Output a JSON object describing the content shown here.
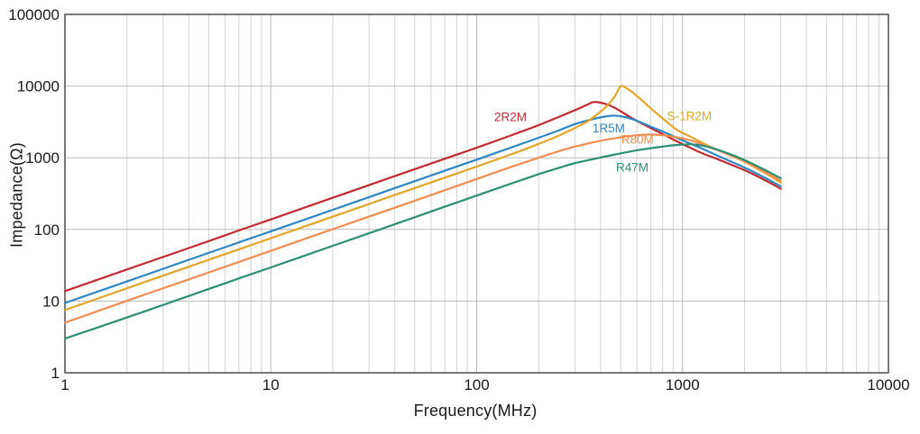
{
  "chart_data": {
    "type": "line",
    "title": "",
    "xlabel": "Frequency(MHz)",
    "ylabel": "Impedance(Ω)",
    "x_scale": "log",
    "y_scale": "log",
    "xlim": [
      1,
      10000
    ],
    "ylim": [
      1,
      100000
    ],
    "x_ticks": [
      1,
      10,
      100,
      1000,
      10000
    ],
    "y_ticks": [
      1,
      10,
      100,
      1000,
      10000,
      100000
    ],
    "grid": {
      "vertical": "log major + minor (2-9 each decade)",
      "horizontal": "major decades only",
      "minor_color": "#d2d2d2",
      "major_color": "#bcbcbc",
      "border_color": "#4d4d4d"
    },
    "legend_position": "inline-curve-labels",
    "text_color": "#1a1a1a",
    "series": [
      {
        "name": "2R2M",
        "color": "#bf2b31",
        "label_anchor": [
          146,
          3700
        ],
        "points": [
          [
            1,
            13.8
          ],
          [
            2,
            27.6
          ],
          [
            4,
            55
          ],
          [
            7,
            97
          ],
          [
            10,
            138
          ],
          [
            20,
            277
          ],
          [
            40,
            555
          ],
          [
            70,
            970
          ],
          [
            100,
            1380
          ],
          [
            150,
            2100
          ],
          [
            200,
            2850
          ],
          [
            250,
            3700
          ],
          [
            300,
            4600
          ],
          [
            340,
            5400
          ],
          [
            372,
            6000
          ],
          [
            420,
            5650
          ],
          [
            470,
            4950
          ],
          [
            560,
            3650
          ],
          [
            650,
            2900
          ],
          [
            750,
            2350
          ],
          [
            900,
            1800
          ],
          [
            1050,
            1450
          ],
          [
            1250,
            1150
          ],
          [
            1500,
            940
          ],
          [
            2000,
            670
          ],
          [
            2500,
            490
          ],
          [
            3000,
            370
          ]
        ]
      },
      {
        "name": "1R5M",
        "color": "#2f86c3",
        "label_anchor": [
          438,
          2580
        ],
        "points": [
          [
            1,
            9.4
          ],
          [
            2,
            18.8
          ],
          [
            4,
            37.7
          ],
          [
            7,
            66
          ],
          [
            10,
            94
          ],
          [
            20,
            188
          ],
          [
            40,
            377
          ],
          [
            70,
            660
          ],
          [
            100,
            942
          ],
          [
            150,
            1420
          ],
          [
            200,
            1900
          ],
          [
            250,
            2400
          ],
          [
            300,
            2950
          ],
          [
            380,
            3550
          ],
          [
            455,
            3860
          ],
          [
            520,
            3720
          ],
          [
            600,
            3280
          ],
          [
            700,
            2720
          ],
          [
            850,
            2160
          ],
          [
            1000,
            1750
          ],
          [
            1250,
            1330
          ],
          [
            1500,
            1050
          ],
          [
            2000,
            730
          ],
          [
            2500,
            530
          ],
          [
            3000,
            400
          ]
        ]
      },
      {
        "name": "S-1R2M",
        "color": "#e2a62b",
        "label_anchor": [
          1080,
          3800
        ],
        "points": [
          [
            1,
            7.5
          ],
          [
            2,
            15.1
          ],
          [
            4,
            30.2
          ],
          [
            7,
            52.8
          ],
          [
            10,
            75.4
          ],
          [
            20,
            151
          ],
          [
            40,
            302
          ],
          [
            70,
            528
          ],
          [
            100,
            754
          ],
          [
            150,
            1140
          ],
          [
            200,
            1560
          ],
          [
            250,
            2030
          ],
          [
            300,
            2600
          ],
          [
            350,
            3300
          ],
          [
            400,
            4400
          ],
          [
            440,
            5700
          ],
          [
            470,
            7300
          ],
          [
            500,
            9900
          ],
          [
            530,
            9500
          ],
          [
            580,
            7900
          ],
          [
            640,
            6200
          ],
          [
            700,
            4900
          ],
          [
            800,
            3550
          ],
          [
            940,
            2450
          ],
          [
            1100,
            1950
          ],
          [
            1300,
            1520
          ],
          [
            1600,
            1170
          ],
          [
            2000,
            880
          ],
          [
            2500,
            620
          ],
          [
            3000,
            450
          ]
        ]
      },
      {
        "name": "R80M",
        "color": "#f08d52",
        "label_anchor": [
          604,
          1800
        ],
        "points": [
          [
            1,
            5.0
          ],
          [
            2,
            10.1
          ],
          [
            4,
            20.1
          ],
          [
            7,
            35.2
          ],
          [
            10,
            50.3
          ],
          [
            20,
            101
          ],
          [
            40,
            201
          ],
          [
            70,
            352
          ],
          [
            100,
            505
          ],
          [
            150,
            760
          ],
          [
            200,
            1000
          ],
          [
            250,
            1230
          ],
          [
            300,
            1430
          ],
          [
            400,
            1730
          ],
          [
            500,
            1930
          ],
          [
            600,
            2060
          ],
          [
            700,
            2110
          ],
          [
            800,
            2060
          ],
          [
            940,
            1930
          ],
          [
            1100,
            1740
          ],
          [
            1300,
            1460
          ],
          [
            1600,
            1170
          ],
          [
            2000,
            890
          ],
          [
            2500,
            640
          ],
          [
            3000,
            480
          ]
        ]
      },
      {
        "name": "R47M",
        "color": "#2d8f75",
        "label_anchor": [
          570,
          730
        ],
        "points": [
          [
            1,
            3.0
          ],
          [
            2,
            5.9
          ],
          [
            4,
            11.8
          ],
          [
            7,
            20.7
          ],
          [
            10,
            29.5
          ],
          [
            20,
            59
          ],
          [
            40,
            118
          ],
          [
            70,
            207
          ],
          [
            100,
            297
          ],
          [
            150,
            445
          ],
          [
            200,
            590
          ],
          [
            250,
            720
          ],
          [
            300,
            840
          ],
          [
            400,
            1010
          ],
          [
            500,
            1150
          ],
          [
            600,
            1270
          ],
          [
            700,
            1360
          ],
          [
            800,
            1430
          ],
          [
            900,
            1490
          ],
          [
            1100,
            1540
          ],
          [
            1300,
            1440
          ],
          [
            1600,
            1200
          ],
          [
            2000,
            930
          ],
          [
            2500,
            680
          ],
          [
            3000,
            520
          ]
        ]
      }
    ]
  }
}
